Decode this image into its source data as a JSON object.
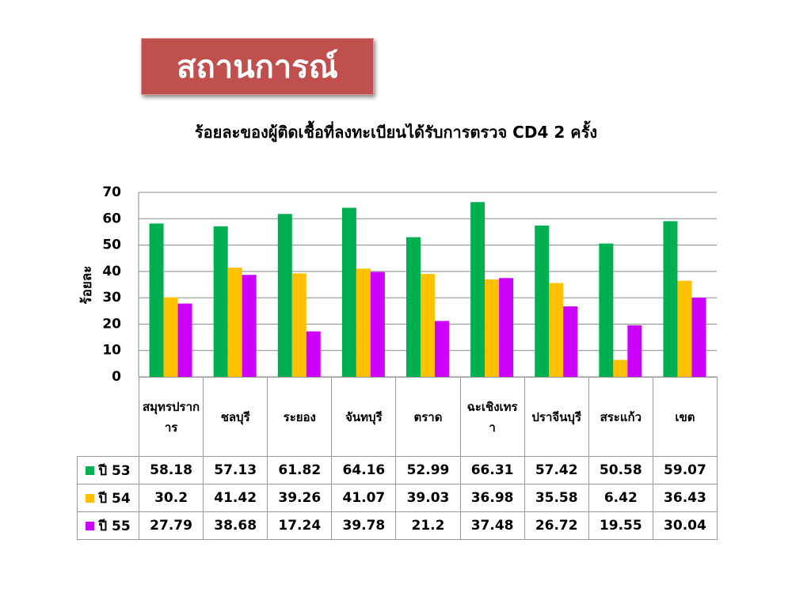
{
  "header": {
    "title": "สถานการณ์"
  },
  "chart_data": {
    "type": "bar",
    "title": "ร้อยละของผู้ติดเชื้อที่ลงทะเบียนได้รับการตรวจ  CD4  2 ครั้ง",
    "y_label": "ร้อยละ",
    "categories": [
      "สมุทรปราการ",
      "ชลบุรี",
      "ระยอง",
      "จันทบุรี",
      "ตราด",
      "ฉะเชิงเทรา",
      "ปราจีนบุรี",
      "สระแก้ว",
      "เขต"
    ],
    "series": [
      {
        "name": "ปี 53",
        "color": "#00b050",
        "values": [
          58.18,
          57.13,
          61.82,
          64.16,
          52.99,
          66.31,
          57.42,
          50.58,
          59.07
        ]
      },
      {
        "name": "ปี 54",
        "color": "#ffc000",
        "values": [
          30.2,
          41.42,
          39.26,
          41.07,
          39.03,
          36.98,
          35.58,
          6.42,
          36.43
        ]
      },
      {
        "name": "ปี 55",
        "color": "#cc00ff",
        "values": [
          27.79,
          38.68,
          17.24,
          39.78,
          21.2,
          37.48,
          26.72,
          19.55,
          30.04
        ]
      }
    ],
    "ylim": [
      0,
      70
    ],
    "yticks": [
      0,
      10,
      20,
      30,
      40,
      50,
      60,
      70
    ],
    "grid": true
  }
}
